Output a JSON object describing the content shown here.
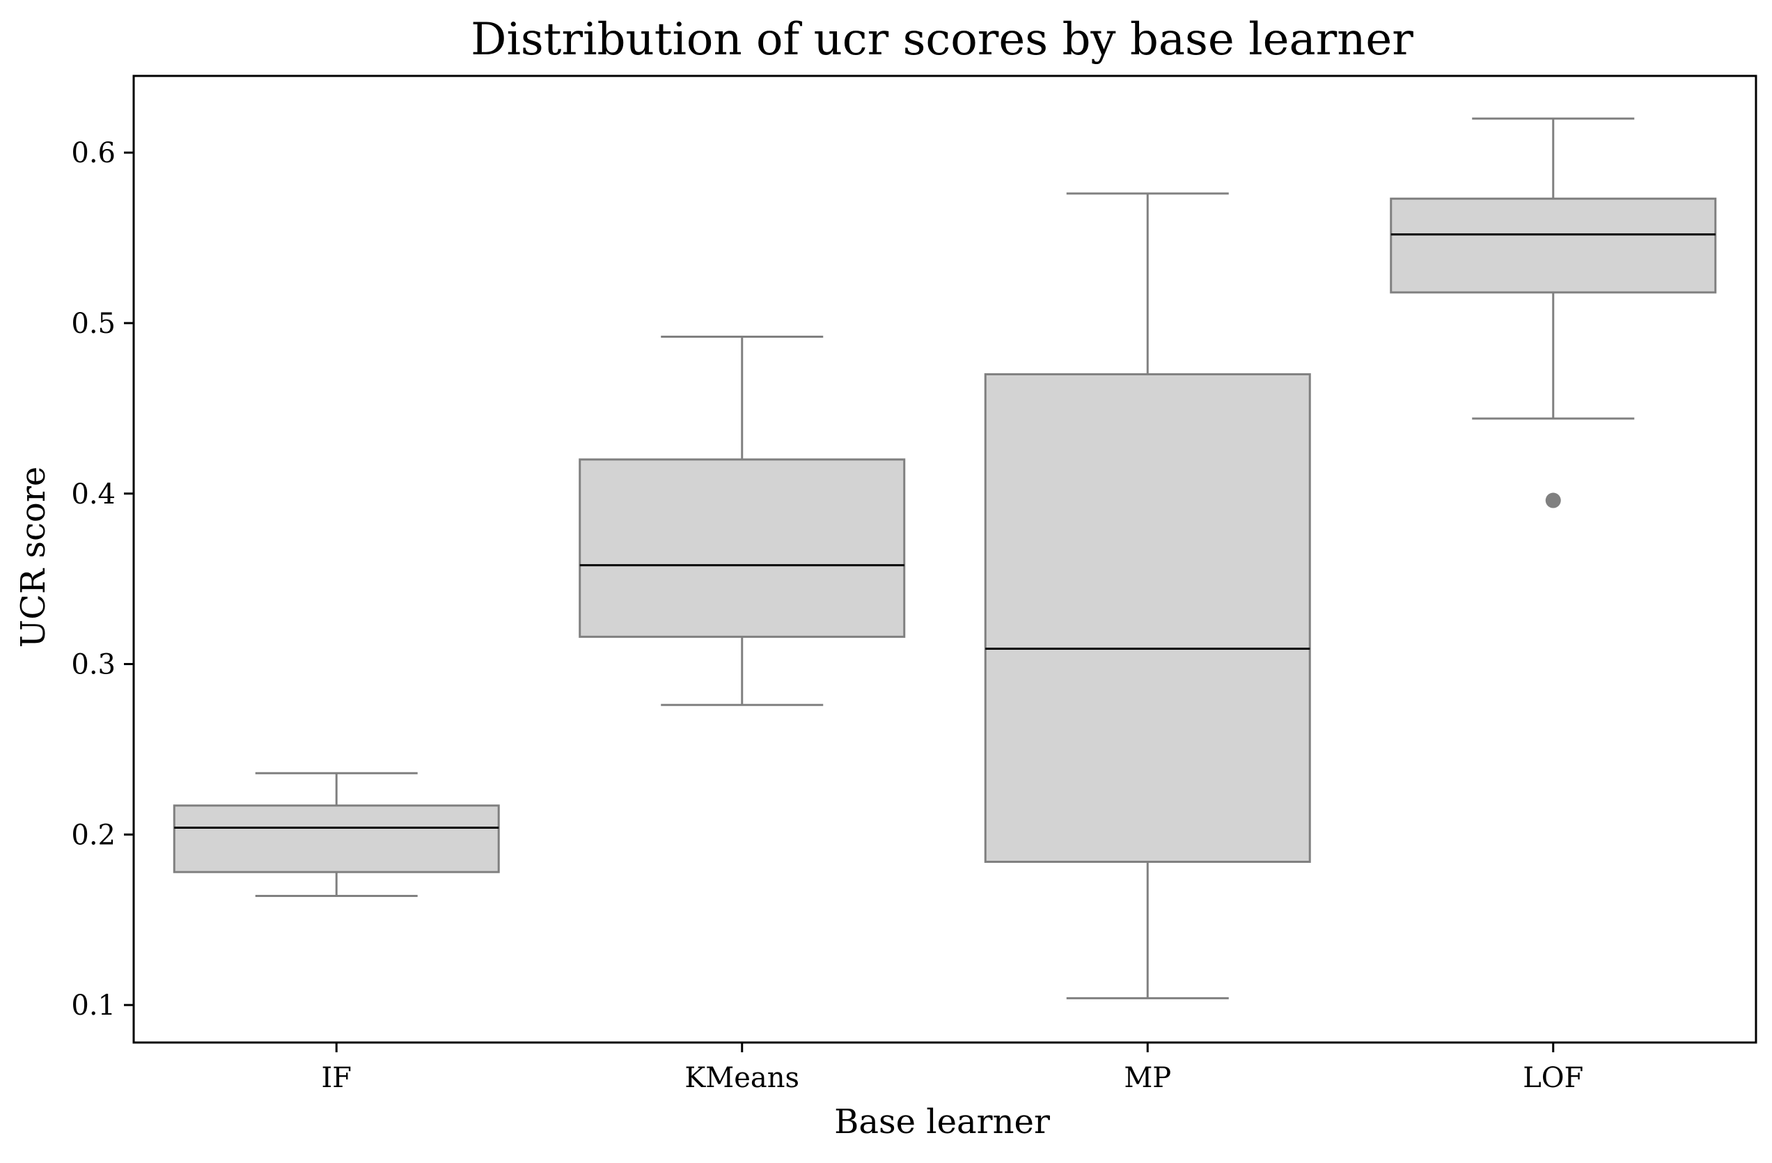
{
  "chart_data": {
    "type": "box",
    "title": "Distribution of ucr scores by base learner",
    "xlabel": "Base learner",
    "ylabel": "UCR score",
    "ylim": [
      0.078,
      0.645
    ],
    "yticks": [
      {
        "value": 0.1,
        "label": "0.1"
      },
      {
        "value": 0.2,
        "label": "0.2"
      },
      {
        "value": 0.3,
        "label": "0.3"
      },
      {
        "value": 0.4,
        "label": "0.4"
      },
      {
        "value": 0.5,
        "label": "0.5"
      },
      {
        "value": 0.6,
        "label": "0.6"
      }
    ],
    "grid": false,
    "categories": [
      "IF",
      "KMeans",
      "MP",
      "LOF"
    ],
    "boxes": [
      {
        "category": "IF",
        "whisker_low": 0.164,
        "q1": 0.178,
        "median": 0.204,
        "q3": 0.217,
        "whisker_high": 0.236,
        "outliers": []
      },
      {
        "category": "KMeans",
        "whisker_low": 0.276,
        "q1": 0.316,
        "median": 0.358,
        "q3": 0.42,
        "whisker_high": 0.492,
        "outliers": []
      },
      {
        "category": "MP",
        "whisker_low": 0.104,
        "q1": 0.184,
        "median": 0.309,
        "q3": 0.47,
        "whisker_high": 0.576,
        "outliers": []
      },
      {
        "category": "LOF",
        "whisker_low": 0.444,
        "q1": 0.518,
        "median": 0.552,
        "q3": 0.573,
        "whisker_high": 0.62,
        "outliers": [
          0.396
        ]
      }
    ],
    "colors": {
      "box_fill": "#d3d3d3",
      "box_edge": "#808080",
      "median": "#000000",
      "outlier": "#808080",
      "axes": "#000000"
    }
  }
}
